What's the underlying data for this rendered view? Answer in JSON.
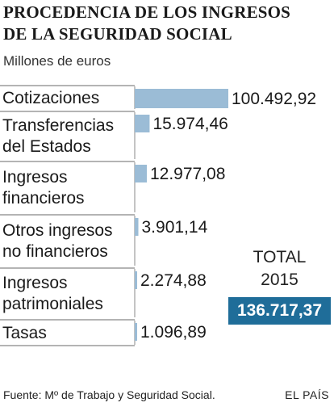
{
  "header": {
    "title_line1": "PROCEDENCIA DE LOS INGRESOS",
    "title_line2": "DE LA SEGURIDAD SOCIAL",
    "subtitle": "Millones de euros"
  },
  "total": {
    "label_line1": "TOTAL",
    "label_line2": "2015",
    "value": "136.717,37",
    "color": "#1f6d99"
  },
  "footer": {
    "source": "Fuente: Mº de Trabajo y Seguridad Social.",
    "brand": "EL PAÍS"
  },
  "chart_data": {
    "type": "bar",
    "orientation": "horizontal",
    "bar_color": "#9bbcd6",
    "rule_color": "#888888",
    "categories": [
      [
        "Cotizaciones"
      ],
      [
        "Transferencias",
        "del Estados"
      ],
      [
        "Ingresos",
        "financieros"
      ],
      [
        "Otros ingresos",
        "no financieros"
      ],
      [
        "Ingresos",
        "patrimoniales"
      ],
      [
        "Tasas"
      ]
    ],
    "values": [
      100492.92,
      15974.46,
      12977.08,
      3901.14,
      2274.88,
      1096.89
    ],
    "value_labels": [
      "100.492,92",
      "15.974,46",
      "12.977,08",
      "3.901,14",
      "2.274,88",
      "1.096,89"
    ],
    "xlim": [
      0,
      100492.92
    ]
  }
}
